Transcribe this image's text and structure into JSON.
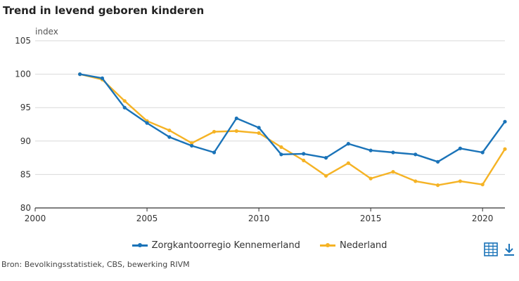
{
  "title": "Trend in levend geboren kinderen",
  "source": "Bron: Bevolkingsstatistiek, CBS, bewerking RIVM",
  "icons": {
    "table": "table-icon",
    "download": "download-icon"
  },
  "colors": {
    "series1": "#1a73b8",
    "series2": "#f5b325",
    "grid": "#d9d9d9",
    "axis": "#333333"
  },
  "chart_data": {
    "type": "line",
    "title": "Trend in levend geboren kinderen",
    "xlabel": "",
    "ylabel": "index",
    "xlim": [
      2000,
      2021
    ],
    "ylim": [
      80,
      105
    ],
    "xticks": [
      2000,
      2005,
      2010,
      2015,
      2020
    ],
    "yticks": [
      80,
      85,
      90,
      95,
      100,
      105
    ],
    "grid": "horizontal",
    "legend": "bottom",
    "x": [
      2002,
      2003,
      2004,
      2005,
      2006,
      2007,
      2008,
      2009,
      2010,
      2011,
      2012,
      2013,
      2014,
      2015,
      2016,
      2017,
      2018,
      2019,
      2020,
      2021
    ],
    "series": [
      {
        "name": "Zorgkantoorregio Kennemerland",
        "color": "#1a73b8",
        "values": [
          100.0,
          99.4,
          95.0,
          92.7,
          90.6,
          89.3,
          88.3,
          93.4,
          92.0,
          88.0,
          88.1,
          87.5,
          89.6,
          88.6,
          88.3,
          88.0,
          86.9,
          88.9,
          88.3,
          92.9
        ]
      },
      {
        "name": "Nederland",
        "color": "#f5b325",
        "values": [
          100.0,
          99.2,
          96.0,
          93.0,
          91.6,
          89.7,
          91.4,
          91.5,
          91.2,
          89.1,
          87.1,
          84.8,
          86.7,
          84.4,
          85.4,
          84.0,
          83.4,
          84.0,
          83.5,
          88.8
        ]
      }
    ]
  }
}
